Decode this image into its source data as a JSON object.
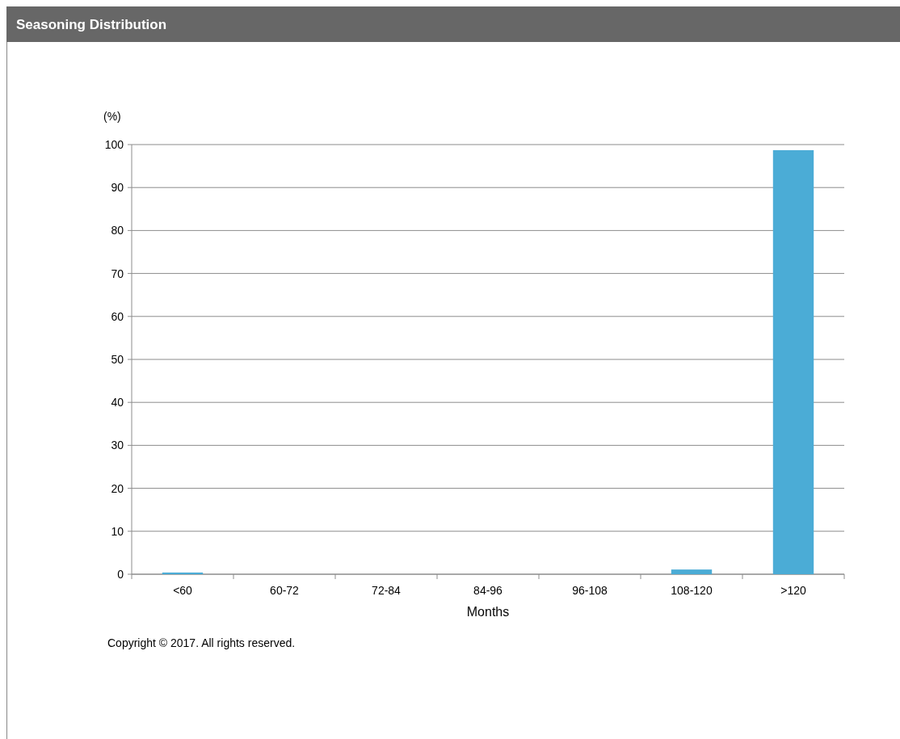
{
  "chart_data": {
    "type": "bar",
    "title": "Seasoning Distribution",
    "ylabel": "(%)",
    "xlabel": "Months",
    "categories": [
      "<60",
      "60-72",
      "72-84",
      "84-96",
      "96-108",
      "108-120",
      ">120"
    ],
    "values": [
      0.4,
      0,
      0,
      0,
      0,
      1.1,
      98.7
    ],
    "color": "#4bacd6",
    "ylim": [
      0,
      100
    ],
    "yticks": [
      0,
      10,
      20,
      30,
      40,
      50,
      60,
      70,
      80,
      90,
      100
    ],
    "grid": "y",
    "annotations": [
      "Copyright © 2017. All rights reserved."
    ]
  }
}
